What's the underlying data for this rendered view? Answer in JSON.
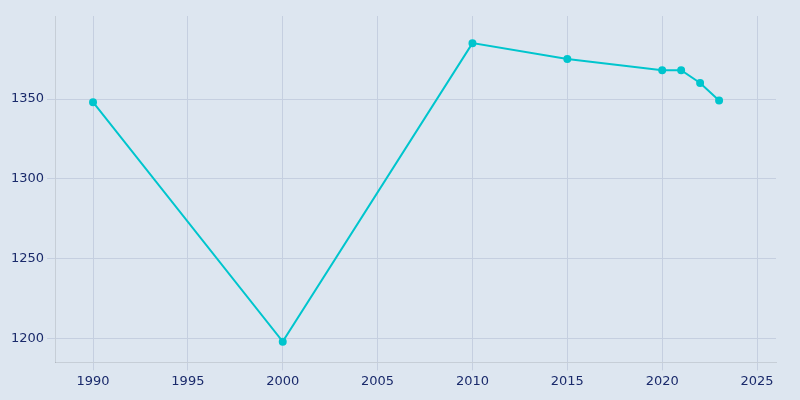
{
  "chart_data": {
    "type": "line",
    "x": [
      1990,
      2000,
      2010,
      2015,
      2020,
      2021,
      2022,
      2023
    ],
    "values": [
      1348,
      1198,
      1385,
      1375,
      1368,
      1368,
      1360,
      1349
    ],
    "color": "#00c5cd",
    "marker": "circle",
    "xlim": [
      1988,
      2026
    ],
    "xticks": [
      1990,
      1995,
      2000,
      2005,
      2010,
      2015,
      2020,
      2025
    ],
    "ylim": [
      1185,
      1402
    ],
    "yticks": [
      1200,
      1250,
      1300,
      1350
    ],
    "grid": true
  }
}
